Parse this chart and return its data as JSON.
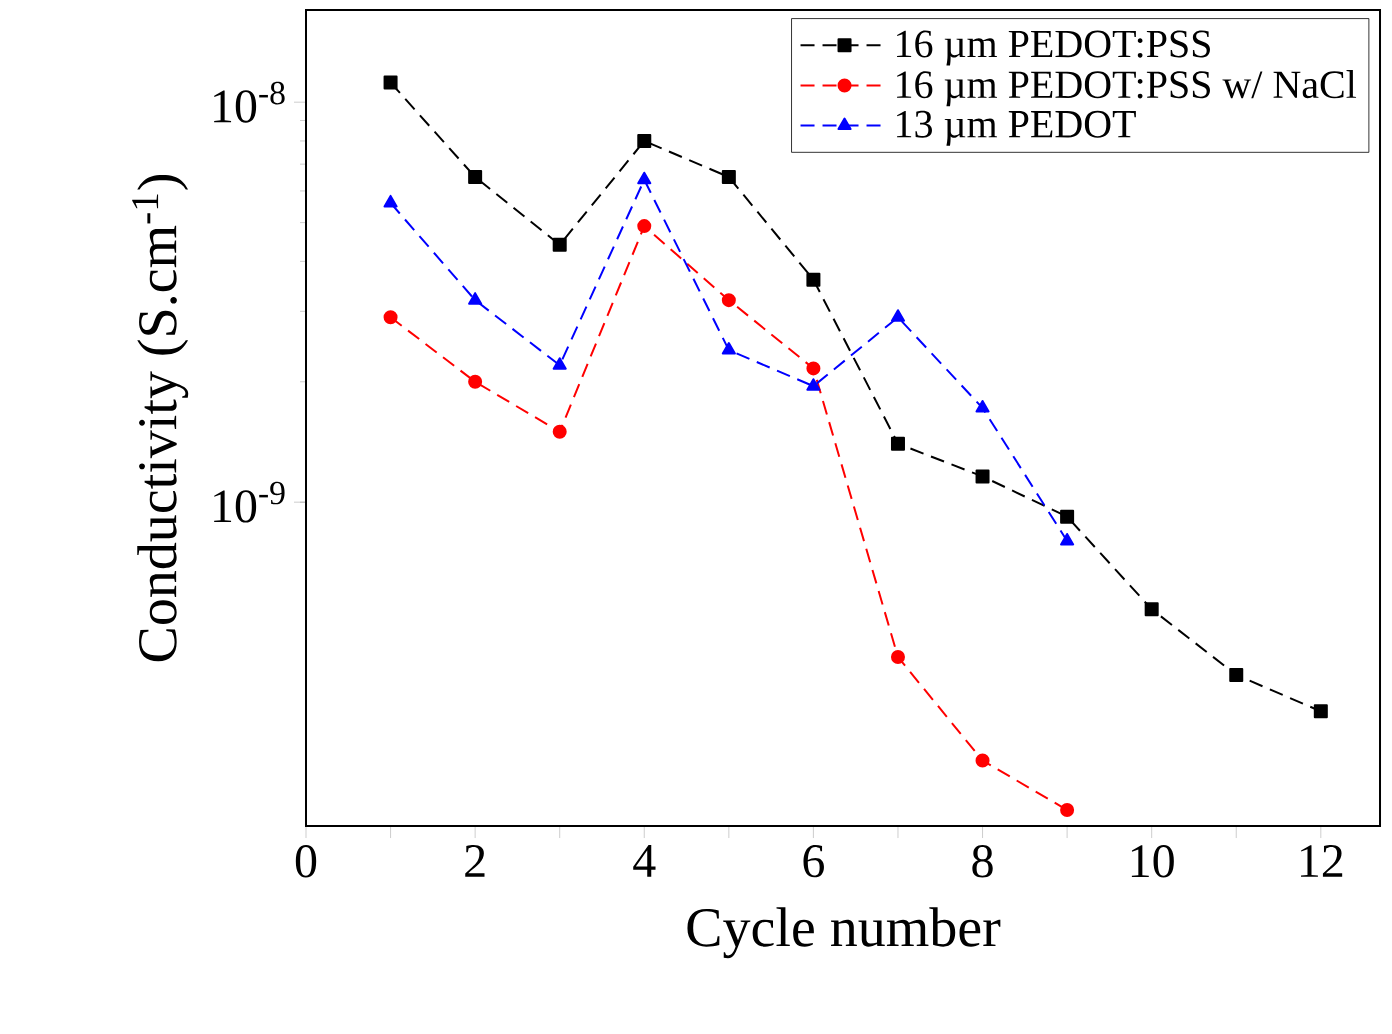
{
  "chart_data": {
    "type": "line",
    "xlabel": "Cycle number",
    "ylabel": "Conductivity (S.cm$^{-1}$)",
    "xlim": [
      0,
      12.7
    ],
    "ylim": [
      1.55e-10,
      1.7e-08
    ],
    "log": "y",
    "xticks": [
      0,
      {
        "value": 1,
        "label": null
      },
      2,
      {
        "value": 3,
        "label": null
      },
      4,
      {
        "value": 5,
        "label": null
      },
      6,
      {
        "value": 7,
        "label": null
      },
      8,
      {
        "value": 9,
        "label": null
      },
      10,
      {
        "value": 11,
        "label": null
      },
      12
    ],
    "yticks": [
      {
        "value": 1e-09,
        "label": "10$^{-9}$"
      },
      {
        "value": 1e-08,
        "label": "10$^{-8}$"
      }
    ],
    "legend": "top right",
    "line_style": "dashed",
    "grid": false,
    "series": [
      {
        "name": "16 µm PEDOT:PSS",
        "color": "#000000",
        "marker": "square",
        "x": [
          1,
          2,
          3,
          4,
          5,
          6,
          7,
          8,
          9,
          10,
          11,
          12
        ],
        "values": [
          1.12e-08,
          6.5e-09,
          4.4e-09,
          8e-09,
          6.5e-09,
          3.6e-09,
          1.4e-09,
          1.16e-09,
          9.2e-10,
          5.4e-10,
          3.7e-10,
          3e-10
        ]
      },
      {
        "name": "16 µm PEDOT:PSS w/ NaCl",
        "color": "#ff0000",
        "marker": "circle",
        "x": [
          1,
          2,
          3,
          4,
          5,
          6,
          7,
          8,
          9
        ],
        "values": [
          2.9e-09,
          2e-09,
          1.5e-09,
          4.9e-09,
          3.2e-09,
          2.16e-09,
          4.1e-10,
          2.26e-10,
          1.7e-10
        ]
      },
      {
        "name": "13 µm PEDOT",
        "color": "#0000ff",
        "marker": "triangle",
        "x": [
          1,
          2,
          3,
          4,
          5,
          6,
          7,
          8,
          9
        ],
        "values": [
          5.6e-09,
          3.2e-09,
          2.2e-09,
          6.4e-09,
          2.4e-09,
          1.95e-09,
          2.9e-09,
          1.72e-09,
          8e-10
        ]
      }
    ]
  }
}
